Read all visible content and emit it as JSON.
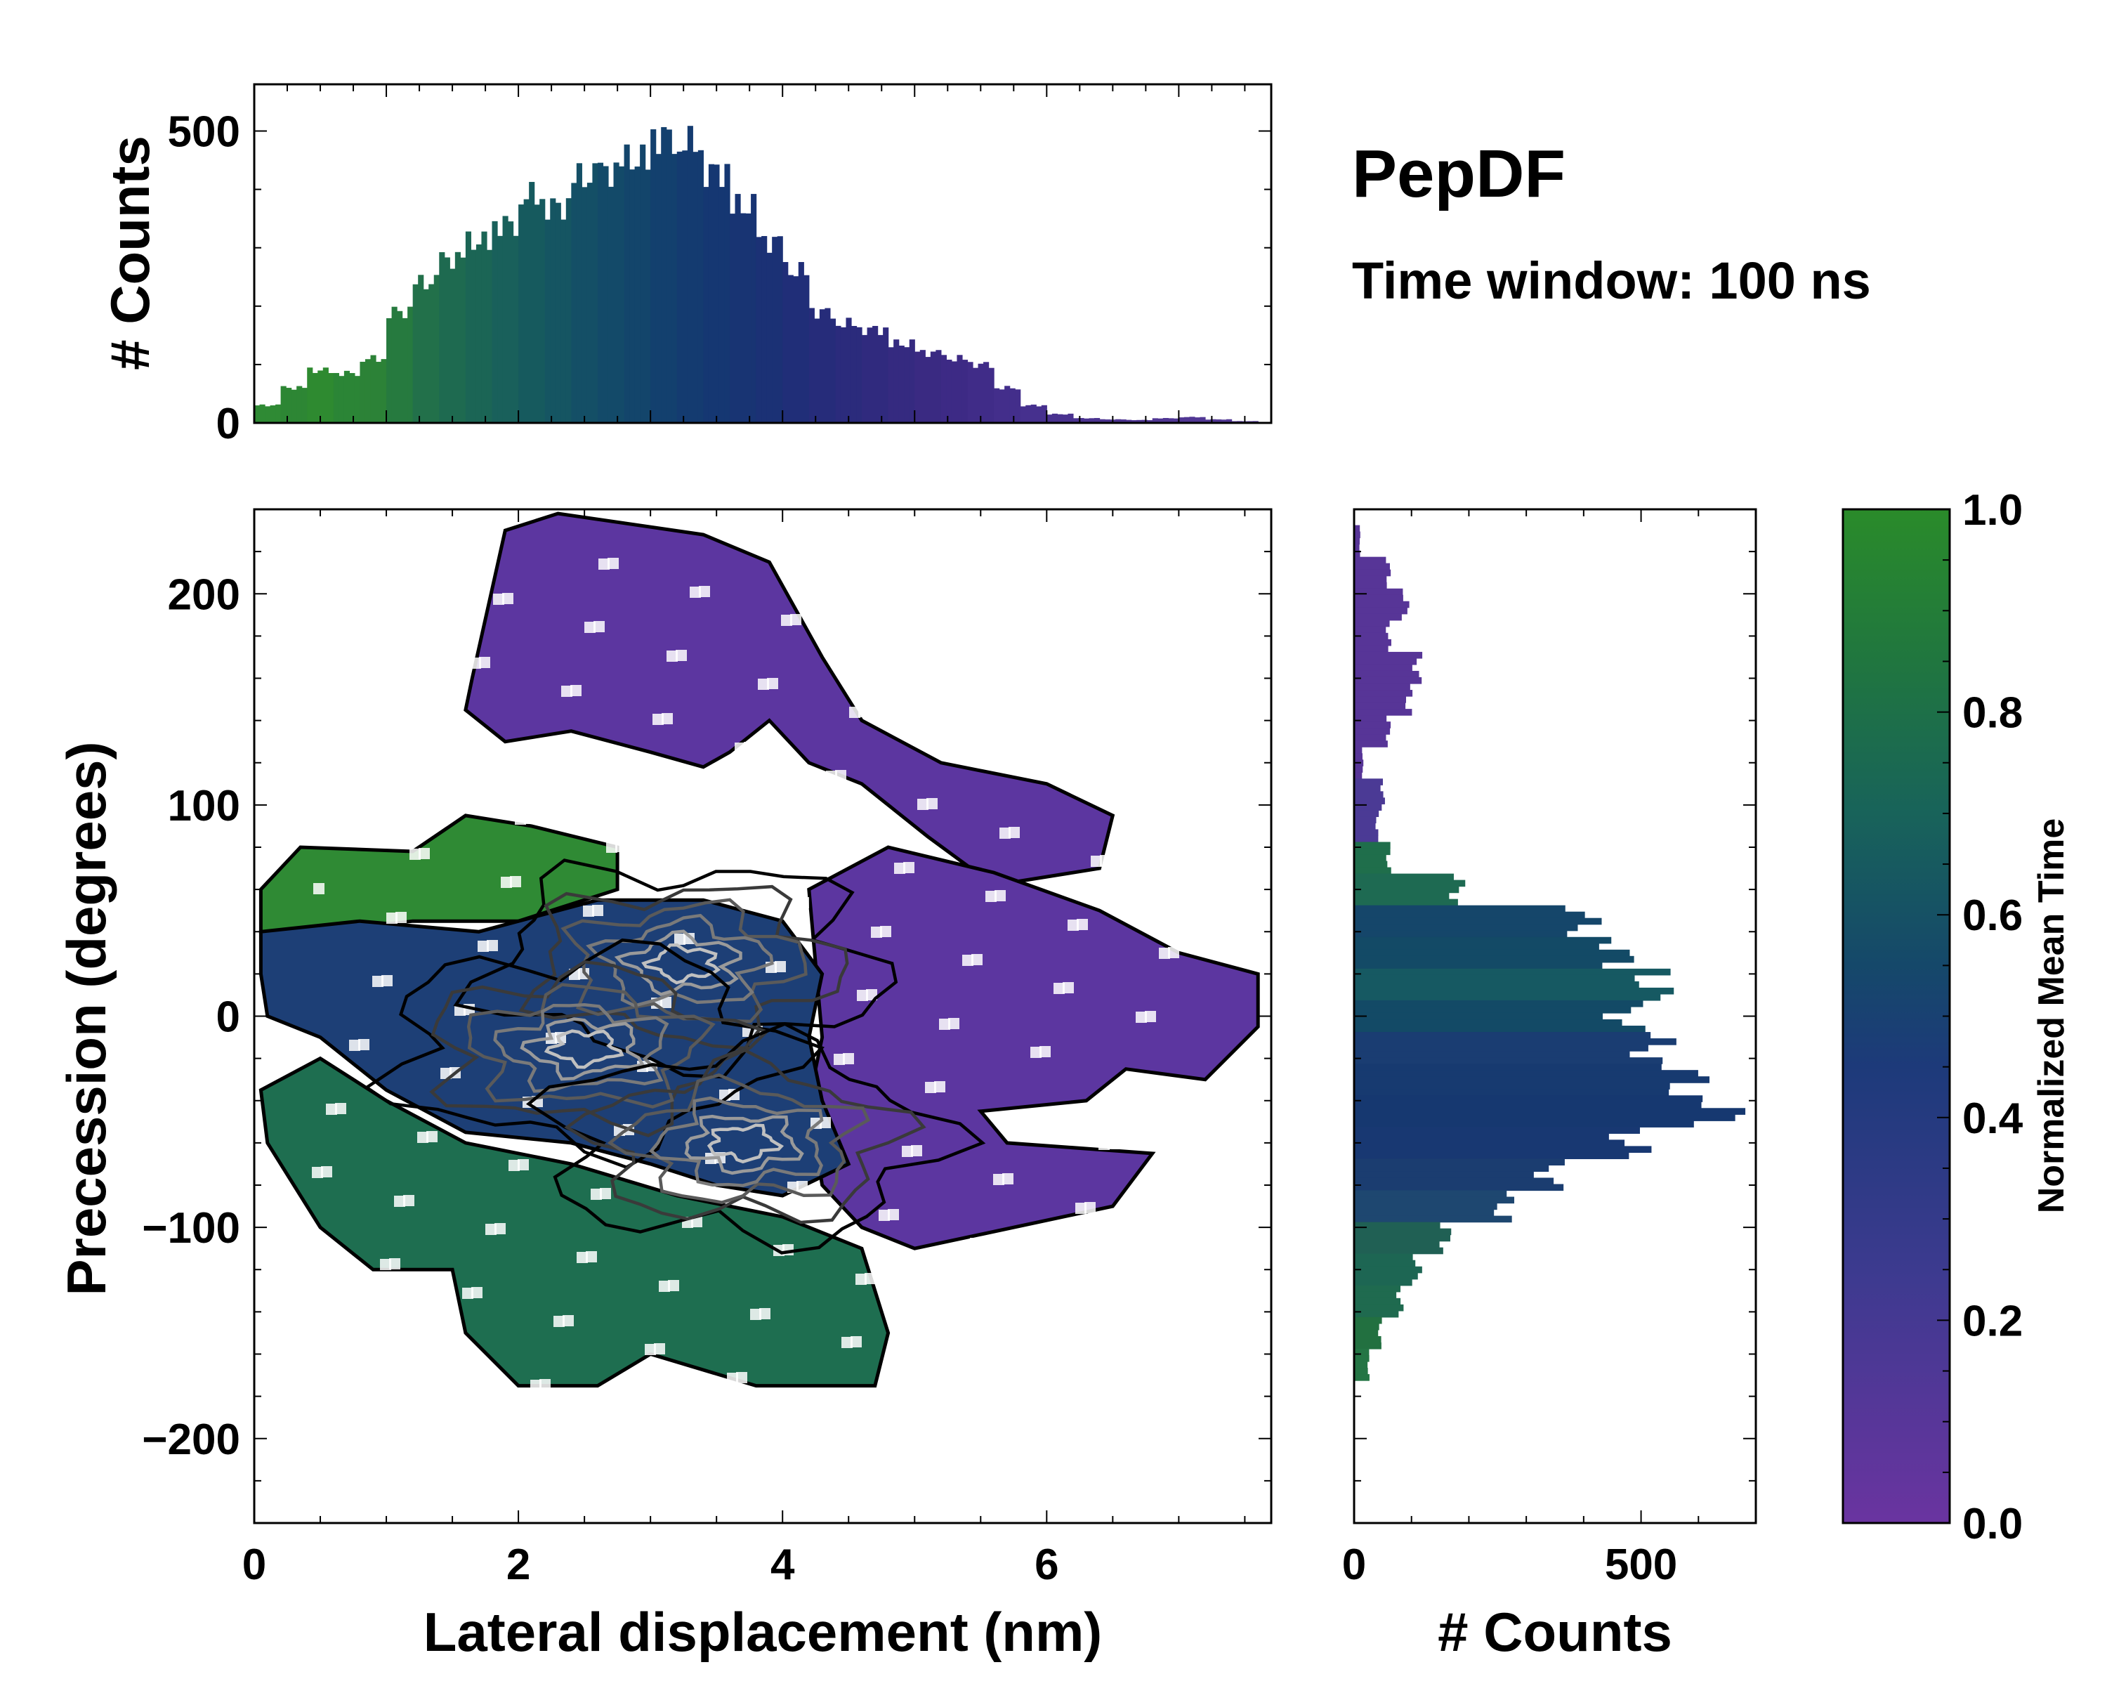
{
  "chart_data": [
    {
      "name": "top-marginal",
      "type": "bar",
      "description_axis": "x",
      "ylabel": "# Counts",
      "xlim": [
        0,
        7.7
      ],
      "ylim": [
        0,
        580
      ],
      "y_ticks": [
        0,
        500
      ],
      "x": [
        0.1,
        0.3,
        0.5,
        0.7,
        0.9,
        1.1,
        1.3,
        1.5,
        1.7,
        1.9,
        2.1,
        2.3,
        2.5,
        2.7,
        2.9,
        3.1,
        3.3,
        3.5,
        3.7,
        3.9,
        4.1,
        4.3,
        4.5,
        4.7,
        4.9,
        5.1,
        5.3,
        5.5,
        5.7,
        5.9,
        6.1,
        6.3,
        6.5,
        6.7,
        6.9,
        7.1,
        7.3,
        7.5
      ],
      "values": [
        30,
        60,
        90,
        85,
        110,
        190,
        240,
        280,
        310,
        340,
        390,
        370,
        420,
        430,
        450,
        490,
        480,
        430,
        370,
        310,
        260,
        190,
        170,
        160,
        135,
        120,
        110,
        100,
        60,
        30,
        15,
        8,
        6,
        5,
        8,
        10,
        6,
        3
      ],
      "colors": [
        "#2f8a34",
        "#2d8634",
        "#2e8a30",
        "#2b8536",
        "#2c8237",
        "#267a3f",
        "#22704a",
        "#1e6a50",
        "#1b6555",
        "#19605b",
        "#165a5e",
        "#155562",
        "#144f66",
        "#134a69",
        "#13456b",
        "#13406e",
        "#143b70",
        "#153772",
        "#183473",
        "#1b3175",
        "#202e78",
        "#262c7a",
        "#2b2b7c",
        "#302a7e",
        "#352a80",
        "#3a2a82",
        "#3d2a85",
        "#402c88",
        "#432e8b",
        "#46308e",
        "#49328f",
        "#4b3390",
        "#4d3491",
        "#4e3592",
        "#503693",
        "#513794",
        "#523895",
        "#533996"
      ]
    },
    {
      "name": "right-marginal",
      "type": "bar",
      "orientation": "horizontal",
      "xlabel": "# Counts",
      "xlim": [
        0,
        700
      ],
      "x_ticks": [
        0,
        500
      ],
      "ylim": [
        -240,
        240
      ],
      "y": [
        225,
        210,
        195,
        180,
        165,
        150,
        135,
        120,
        105,
        90,
        75,
        60,
        45,
        30,
        15,
        0,
        -15,
        -30,
        -45,
        -60,
        -75,
        -90,
        -105,
        -120,
        -135,
        -150,
        -165
      ],
      "values": [
        10,
        60,
        90,
        60,
        110,
        95,
        60,
        15,
        50,
        40,
        60,
        180,
        400,
        460,
        520,
        470,
        520,
        580,
        640,
        480,
        340,
        260,
        160,
        110,
        80,
        45,
        25
      ],
      "colors": [
        "#573597",
        "#573597",
        "#573597",
        "#573597",
        "#573597",
        "#573597",
        "#573597",
        "#573597",
        "#4b3a95",
        "#4b3a95",
        "#1f6e4b",
        "#1e6a52",
        "#15466a",
        "#134a66",
        "#165962",
        "#134a66",
        "#1a3d72",
        "#173a70",
        "#163870",
        "#183872",
        "#1b3d70",
        "#1e4770",
        "#206054",
        "#1d6653",
        "#1f6a4f",
        "#227040",
        "#247544"
      ]
    },
    {
      "name": "main-2d-histogram",
      "type": "heatmap",
      "xlabel": "Lateral displacement (nm)",
      "ylabel": "Precession (degrees)",
      "xlim": [
        0,
        7.7
      ],
      "ylim": [
        -240,
        240
      ],
      "x_ticks": [
        0,
        2,
        4,
        6
      ],
      "y_ticks": [
        -200,
        -100,
        0,
        100,
        200
      ],
      "regions": [
        {
          "label": "upper-purple",
          "color": "#5c36a0",
          "outline": [
            [
              1.65,
              160
            ],
            [
              1.9,
              230
            ],
            [
              2.3,
              238
            ],
            [
              3.4,
              228
            ],
            [
              3.9,
              215
            ],
            [
              4.3,
              170
            ],
            [
              4.6,
              140
            ],
            [
              5.2,
              120
            ],
            [
              6.0,
              110
            ],
            [
              6.5,
              95
            ],
            [
              6.4,
              70
            ],
            [
              5.6,
              62
            ],
            [
              5.1,
              85
            ],
            [
              4.6,
              110
            ],
            [
              4.2,
              120
            ],
            [
              3.9,
              140
            ],
            [
              3.6,
              125
            ],
            [
              3.4,
              118
            ],
            [
              3.0,
              125
            ],
            [
              2.4,
              135
            ],
            [
              1.9,
              130
            ],
            [
              1.6,
              145
            ]
          ]
        },
        {
          "label": "right-purple",
          "color": "#5c36a0",
          "outline": [
            [
              4.2,
              60
            ],
            [
              4.8,
              80
            ],
            [
              5.6,
              68
            ],
            [
              6.4,
              50
            ],
            [
              7.0,
              30
            ],
            [
              7.6,
              20
            ],
            [
              7.6,
              -5
            ],
            [
              7.2,
              -30
            ],
            [
              6.6,
              -25
            ],
            [
              6.3,
              -40
            ],
            [
              5.5,
              -45
            ],
            [
              5.7,
              -60
            ],
            [
              6.8,
              -65
            ],
            [
              6.5,
              -90
            ],
            [
              5.0,
              -110
            ],
            [
              4.6,
              -100
            ],
            [
              4.3,
              -80
            ],
            [
              4.2,
              -40
            ],
            [
              4.3,
              -10
            ]
          ]
        },
        {
          "label": "left-green",
          "color": "#2f8a34",
          "outline": [
            [
              0.05,
              60
            ],
            [
              0.35,
              80
            ],
            [
              1.2,
              78
            ],
            [
              1.6,
              95
            ],
            [
              2.1,
              90
            ],
            [
              2.75,
              80
            ],
            [
              2.75,
              60
            ],
            [
              2.0,
              45
            ],
            [
              1.2,
              45
            ],
            [
              0.5,
              40
            ],
            [
              0.05,
              40
            ]
          ]
        },
        {
          "label": "center-blue",
          "color": "#1d3f76",
          "outline": [
            [
              0.05,
              40
            ],
            [
              0.8,
              45
            ],
            [
              1.7,
              40
            ],
            [
              2.6,
              55
            ],
            [
              3.4,
              55
            ],
            [
              4.0,
              45
            ],
            [
              4.3,
              20
            ],
            [
              4.2,
              -10
            ],
            [
              4.3,
              -40
            ],
            [
              4.5,
              -70
            ],
            [
              4.0,
              -85
            ],
            [
              3.5,
              -80
            ],
            [
              3.0,
              -70
            ],
            [
              2.4,
              -60
            ],
            [
              1.6,
              -55
            ],
            [
              1.0,
              -35
            ],
            [
              0.5,
              -10
            ],
            [
              0.1,
              0
            ],
            [
              0.05,
              20
            ]
          ]
        },
        {
          "label": "lower-green",
          "color": "#1e6e50",
          "outline": [
            [
              0.05,
              -35
            ],
            [
              0.5,
              -20
            ],
            [
              1.0,
              -40
            ],
            [
              1.6,
              -60
            ],
            [
              2.4,
              -70
            ],
            [
              3.2,
              -85
            ],
            [
              4.0,
              -95
            ],
            [
              4.6,
              -110
            ],
            [
              4.8,
              -150
            ],
            [
              4.7,
              -175
            ],
            [
              3.8,
              -175
            ],
            [
              3.0,
              -160
            ],
            [
              2.6,
              -175
            ],
            [
              2.0,
              -175
            ],
            [
              1.6,
              -150
            ],
            [
              1.5,
              -120
            ],
            [
              0.9,
              -120
            ],
            [
              0.5,
              -100
            ],
            [
              0.1,
              -60
            ]
          ]
        }
      ],
      "contours": {
        "outer_color": "#000000",
        "inner_colors": [
          "#3a3a3a",
          "#5a5a5a",
          "#7a7a7a",
          "#9a9a9a",
          "#c0c0c0"
        ],
        "peaks": [
          {
            "x": 3.25,
            "y": 25,
            "label": "peak-1"
          },
          {
            "x": 2.5,
            "y": -15,
            "label": "peak-2"
          },
          {
            "x": 3.7,
            "y": -60,
            "label": "peak-3"
          }
        ]
      }
    },
    {
      "name": "colorbar",
      "type": "colorbar",
      "label": "Normalized Mean Time",
      "range": [
        0.0,
        1.0
      ],
      "ticks": [
        "0.0",
        "0.2",
        "0.4",
        "0.6",
        "0.8",
        "1.0"
      ],
      "tick_values": [
        0.0,
        0.2,
        0.4,
        0.6,
        0.8,
        1.0
      ],
      "stops": [
        {
          "v": 0.0,
          "color": "#6a34a0"
        },
        {
          "v": 0.25,
          "color": "#3c3a8f"
        },
        {
          "v": 0.45,
          "color": "#1d3a7a"
        },
        {
          "v": 0.55,
          "color": "#15486a"
        },
        {
          "v": 0.7,
          "color": "#18635a"
        },
        {
          "v": 0.85,
          "color": "#20763f"
        },
        {
          "v": 1.0,
          "color": "#2a8b2a"
        }
      ]
    }
  ],
  "annotations": {
    "title": "PepDF",
    "subtitle": "Time window: 100 ns"
  }
}
